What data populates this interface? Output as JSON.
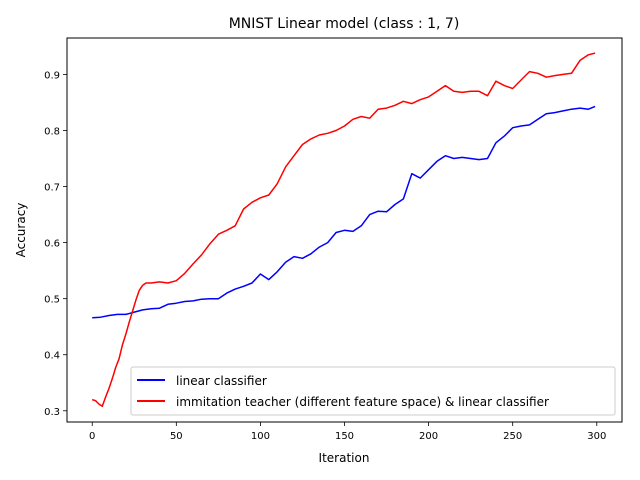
{
  "chart_data": {
    "type": "line",
    "title": "MNIST Linear model (class : 1, 7)",
    "xlabel": "Iteration",
    "ylabel": "Accuracy",
    "xlim": [
      -15,
      315
    ],
    "ylim": [
      0.28,
      0.965
    ],
    "xticks": [
      0,
      50,
      100,
      150,
      200,
      250,
      300
    ],
    "yticks": [
      0.3,
      0.4,
      0.5,
      0.6,
      0.7,
      0.8,
      0.9
    ],
    "xtick_labels": [
      "0",
      "50",
      "100",
      "150",
      "200",
      "250",
      "300"
    ],
    "ytick_labels": [
      "0.3",
      "0.4",
      "0.5",
      "0.6",
      "0.7",
      "0.8",
      "0.9"
    ],
    "grid": false,
    "legend_position": "lower-right",
    "series": [
      {
        "name": "linear classifier",
        "color": "#0000ff",
        "x": [
          0,
          5,
          10,
          15,
          20,
          25,
          30,
          35,
          40,
          45,
          50,
          55,
          60,
          65,
          70,
          75,
          80,
          85,
          90,
          95,
          100,
          105,
          110,
          115,
          120,
          125,
          130,
          135,
          140,
          145,
          150,
          155,
          160,
          165,
          170,
          175,
          180,
          185,
          190,
          195,
          200,
          205,
          210,
          215,
          220,
          225,
          230,
          235,
          240,
          245,
          250,
          255,
          260,
          265,
          270,
          275,
          280,
          285,
          290,
          295,
          299
        ],
        "y": [
          0.466,
          0.467,
          0.47,
          0.472,
          0.472,
          0.476,
          0.48,
          0.482,
          0.483,
          0.49,
          0.492,
          0.495,
          0.496,
          0.499,
          0.5,
          0.5,
          0.51,
          0.517,
          0.522,
          0.528,
          0.544,
          0.534,
          0.548,
          0.565,
          0.575,
          0.572,
          0.58,
          0.592,
          0.6,
          0.618,
          0.622,
          0.62,
          0.63,
          0.65,
          0.656,
          0.655,
          0.668,
          0.678,
          0.723,
          0.715,
          0.73,
          0.745,
          0.755,
          0.75,
          0.752,
          0.75,
          0.748,
          0.75,
          0.778,
          0.79,
          0.805,
          0.808,
          0.81,
          0.82,
          0.83,
          0.832,
          0.835,
          0.838,
          0.84,
          0.838,
          0.843
        ]
      },
      {
        "name": "immitation teacher (different feature space) & linear classifier",
        "color": "#ff0000",
        "x": [
          0,
          2,
          4,
          6,
          8,
          10,
          12,
          14,
          16,
          18,
          20,
          22,
          24,
          26,
          28,
          30,
          32,
          35,
          40,
          45,
          50,
          55,
          60,
          65,
          70,
          75,
          80,
          85,
          90,
          95,
          100,
          105,
          110,
          115,
          120,
          125,
          130,
          135,
          140,
          145,
          150,
          155,
          160,
          165,
          170,
          175,
          180,
          185,
          190,
          195,
          200,
          205,
          210,
          215,
          220,
          225,
          230,
          235,
          240,
          245,
          250,
          255,
          260,
          265,
          270,
          275,
          280,
          285,
          290,
          295,
          299
        ],
        "y": [
          0.32,
          0.318,
          0.312,
          0.308,
          0.325,
          0.34,
          0.358,
          0.378,
          0.393,
          0.418,
          0.437,
          0.458,
          0.478,
          0.498,
          0.515,
          0.524,
          0.528,
          0.528,
          0.53,
          0.528,
          0.532,
          0.545,
          0.562,
          0.578,
          0.598,
          0.615,
          0.622,
          0.63,
          0.66,
          0.672,
          0.68,
          0.685,
          0.705,
          0.735,
          0.755,
          0.775,
          0.785,
          0.792,
          0.795,
          0.8,
          0.808,
          0.82,
          0.825,
          0.822,
          0.838,
          0.84,
          0.845,
          0.852,
          0.848,
          0.855,
          0.86,
          0.87,
          0.88,
          0.87,
          0.868,
          0.87,
          0.87,
          0.862,
          0.888,
          0.88,
          0.875,
          0.89,
          0.905,
          0.902,
          0.895,
          0.898,
          0.9,
          0.902,
          0.925,
          0.935,
          0.938
        ]
      }
    ]
  }
}
